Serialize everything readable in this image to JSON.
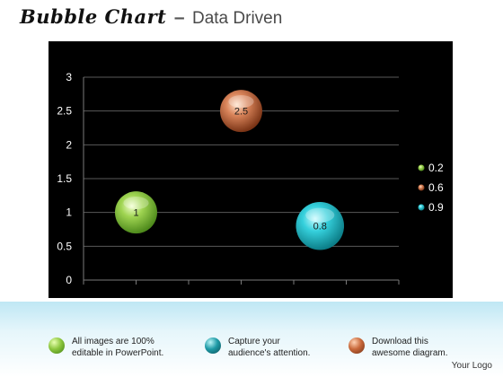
{
  "header": {
    "title_main": "Bubble Chart",
    "title_dash": "–",
    "title_sub": "Data Driven"
  },
  "chart_data": {
    "type": "scatter",
    "title": "",
    "xlabel": "",
    "ylabel": "",
    "ylim": [
      0,
      3
    ],
    "xlim": [
      0,
      6
    ],
    "y_ticks": [
      "0",
      "0.5",
      "1",
      "1.5",
      "2",
      "2.5",
      "3"
    ],
    "grid": true,
    "legend_position": "right",
    "series": [
      {
        "name": "0.2",
        "x": 1,
        "y": 1.0,
        "size": 1.0,
        "label": "1",
        "color": "#8cc63e"
      },
      {
        "name": "0.6",
        "x": 3,
        "y": 2.5,
        "size": 1.0,
        "label": "2.5",
        "color": "#c8683a"
      },
      {
        "name": "0.9",
        "x": 4.5,
        "y": 0.8,
        "size": 1.3,
        "label": "0.8",
        "color": "#22b7c4"
      }
    ]
  },
  "features": [
    {
      "text": "All images are 100%\neditable in PowerPoint.",
      "icon": "green-ball-icon",
      "color": "#8cc63e"
    },
    {
      "text": "Capture your\naudience's attention.",
      "icon": "teal-ball-icon",
      "color": "#1e9aa6"
    },
    {
      "text": "Download this\nawesome diagram.",
      "icon": "brown-ball-icon",
      "color": "#c8683a"
    }
  ],
  "footer": {
    "logo": "Your Logo"
  }
}
